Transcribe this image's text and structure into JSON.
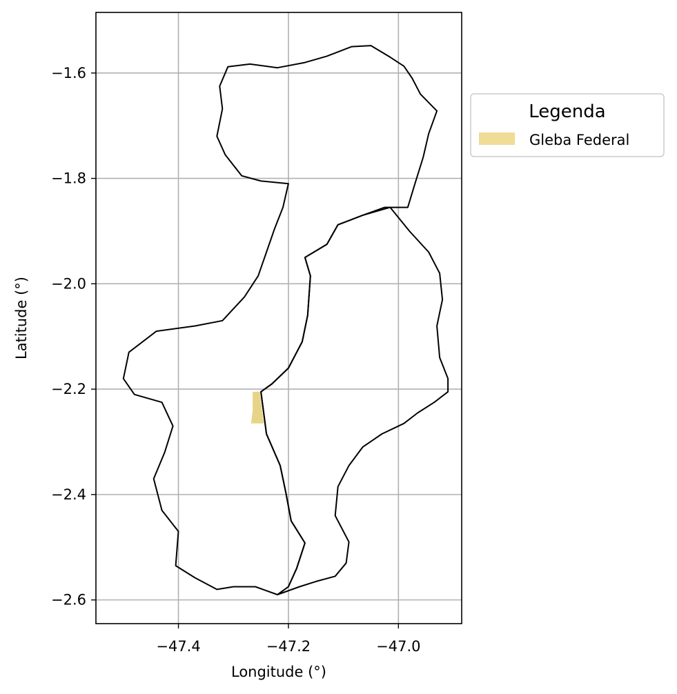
{
  "chart_data": {
    "type": "map",
    "xlabel": "Longitude (°)",
    "ylabel": "Latitude (°)",
    "xlim": [
      -47.55,
      -46.885
    ],
    "ylim": [
      -2.645,
      -1.485
    ],
    "xticks": [
      -47.4,
      -47.2,
      -47.0
    ],
    "xtick_labels": [
      "−47.4",
      "−47.2",
      "−47.0"
    ],
    "yticks": [
      -1.6,
      -1.8,
      -2.0,
      -2.2,
      -2.4,
      -2.6
    ],
    "ytick_labels": [
      "−1.6",
      "−1.8",
      "−2.0",
      "−2.2",
      "−2.4",
      "−2.6"
    ],
    "grid": true,
    "legend": {
      "title": "Legenda",
      "placement": "outside-right-top",
      "entries": [
        {
          "label": "Gleba Federal",
          "color": "#f0dc96"
        }
      ]
    },
    "colors": {
      "boundary": "#000000",
      "gleba": "#e8d486",
      "grid": "#b0b0b0"
    },
    "boundaries": [
      {
        "name": "",
        "points": [
          [
            -47.31,
            -1.588
          ],
          [
            -47.27,
            -1.583
          ],
          [
            -47.22,
            -1.59
          ],
          [
            -47.17,
            -1.58
          ],
          [
            -47.13,
            -1.568
          ],
          [
            -47.085,
            -1.55
          ],
          [
            -47.05,
            -1.548
          ],
          [
            -47.015,
            -1.57
          ],
          [
            -46.99,
            -1.587
          ],
          [
            -46.975,
            -1.61
          ],
          [
            -46.96,
            -1.64
          ],
          [
            -46.93,
            -1.672
          ],
          [
            -46.945,
            -1.715
          ],
          [
            -46.955,
            -1.76
          ],
          [
            -46.97,
            -1.81
          ],
          [
            -46.983,
            -1.855
          ],
          [
            -47.025,
            -1.855
          ],
          [
            -47.065,
            -1.87
          ],
          [
            -47.11,
            -1.888
          ],
          [
            -47.13,
            -1.925
          ],
          [
            -47.17,
            -1.95
          ],
          [
            -47.16,
            -1.985
          ],
          [
            -47.165,
            -2.06
          ],
          [
            -47.175,
            -2.11
          ],
          [
            -47.2,
            -2.16
          ],
          [
            -47.23,
            -2.19
          ],
          [
            -47.25,
            -2.205
          ],
          [
            -47.24,
            -2.285
          ],
          [
            -47.215,
            -2.345
          ],
          [
            -47.205,
            -2.395
          ],
          [
            -47.195,
            -2.45
          ],
          [
            -47.17,
            -2.492
          ],
          [
            -47.185,
            -2.54
          ],
          [
            -47.2,
            -2.575
          ],
          [
            -47.22,
            -2.59
          ],
          [
            -47.26,
            -2.575
          ],
          [
            -47.3,
            -2.575
          ],
          [
            -47.33,
            -2.58
          ],
          [
            -47.37,
            -2.558
          ],
          [
            -47.405,
            -2.535
          ],
          [
            -47.4,
            -2.47
          ],
          [
            -47.43,
            -2.43
          ],
          [
            -47.445,
            -2.37
          ],
          [
            -47.425,
            -2.32
          ],
          [
            -47.41,
            -2.27
          ],
          [
            -47.43,
            -2.225
          ],
          [
            -47.48,
            -2.21
          ],
          [
            -47.5,
            -2.18
          ],
          [
            -47.49,
            -2.13
          ],
          [
            -47.44,
            -2.09
          ],
          [
            -47.37,
            -2.08
          ],
          [
            -47.32,
            -2.07
          ],
          [
            -47.28,
            -2.025
          ],
          [
            -47.255,
            -1.985
          ],
          [
            -47.24,
            -1.94
          ],
          [
            -47.225,
            -1.895
          ],
          [
            -47.21,
            -1.855
          ],
          [
            -47.2,
            -1.81
          ],
          [
            -47.25,
            -1.805
          ],
          [
            -47.285,
            -1.795
          ],
          [
            -47.315,
            -1.755
          ],
          [
            -47.33,
            -1.72
          ],
          [
            -47.32,
            -1.668
          ],
          [
            -47.325,
            -1.625
          ],
          [
            -47.31,
            -1.588
          ]
        ]
      },
      {
        "name": "",
        "points": [
          [
            -47.015,
            -1.855
          ],
          [
            -46.98,
            -1.9
          ],
          [
            -46.945,
            -1.94
          ],
          [
            -46.925,
            -1.98
          ],
          [
            -46.92,
            -2.03
          ],
          [
            -46.93,
            -2.08
          ],
          [
            -46.925,
            -2.14
          ],
          [
            -46.91,
            -2.18
          ],
          [
            -46.91,
            -2.205
          ],
          [
            -46.935,
            -2.225
          ],
          [
            -46.965,
            -2.245
          ],
          [
            -46.99,
            -2.265
          ],
          [
            -47.03,
            -2.285
          ],
          [
            -47.065,
            -2.31
          ],
          [
            -47.09,
            -2.345
          ],
          [
            -47.11,
            -2.385
          ],
          [
            -47.115,
            -2.44
          ],
          [
            -47.09,
            -2.49
          ],
          [
            -47.095,
            -2.53
          ],
          [
            -47.115,
            -2.555
          ],
          [
            -47.15,
            -2.565
          ],
          [
            -47.18,
            -2.575
          ],
          [
            -47.22,
            -2.59
          ],
          [
            -47.2,
            -2.575
          ],
          [
            -47.185,
            -2.54
          ],
          [
            -47.17,
            -2.492
          ],
          [
            -47.195,
            -2.45
          ],
          [
            -47.205,
            -2.395
          ],
          [
            -47.215,
            -2.345
          ],
          [
            -47.24,
            -2.285
          ],
          [
            -47.25,
            -2.205
          ],
          [
            -47.23,
            -2.19
          ],
          [
            -47.2,
            -2.16
          ],
          [
            -47.175,
            -2.11
          ],
          [
            -47.165,
            -2.06
          ],
          [
            -47.16,
            -1.985
          ],
          [
            -47.17,
            -1.95
          ],
          [
            -47.13,
            -1.925
          ],
          [
            -47.11,
            -1.888
          ],
          [
            -47.065,
            -1.87
          ],
          [
            -47.015,
            -1.855
          ]
        ]
      }
    ],
    "gleba_federal": {
      "points": [
        [
          -47.265,
          -2.205
        ],
        [
          -47.252,
          -2.205
        ],
        [
          -47.248,
          -2.24
        ],
        [
          -47.245,
          -2.265
        ],
        [
          -47.268,
          -2.265
        ],
        [
          -47.265,
          -2.24
        ],
        [
          -47.265,
          -2.205
        ]
      ]
    }
  }
}
